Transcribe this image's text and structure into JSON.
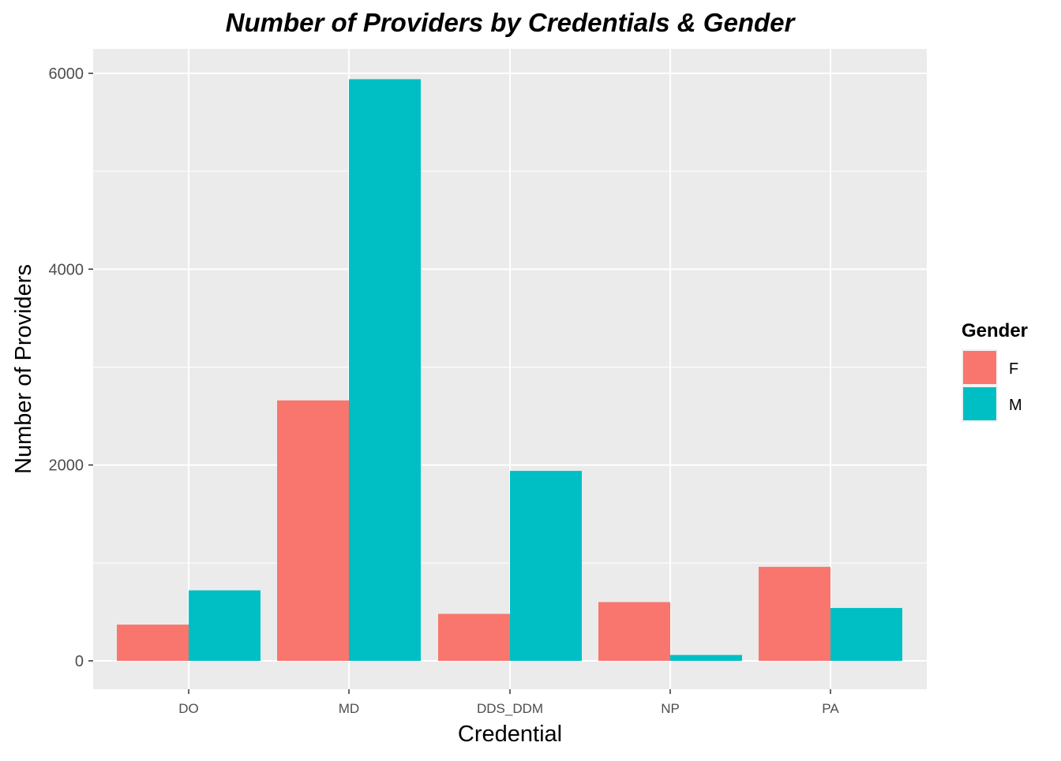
{
  "chart_data": {
    "type": "bar",
    "title": "Number of Providers by Credentials & Gender",
    "xlabel": "Credential",
    "ylabel": "Number of Providers",
    "categories": [
      "DO",
      "MD",
      "DDS_DDM",
      "NP",
      "PA"
    ],
    "series": [
      {
        "name": "F",
        "values": [
          370,
          2660,
          480,
          600,
          960
        ],
        "color": "#F8766D"
      },
      {
        "name": "M",
        "values": [
          720,
          5940,
          1940,
          60,
          540
        ],
        "color": "#00BFC4"
      }
    ],
    "ylim": [
      0,
      6000
    ],
    "yticks": [
      0,
      2000,
      4000,
      6000
    ],
    "grid": true,
    "panel_background": "#EBEBEB",
    "legend": {
      "title": "Gender",
      "position": "right"
    }
  }
}
